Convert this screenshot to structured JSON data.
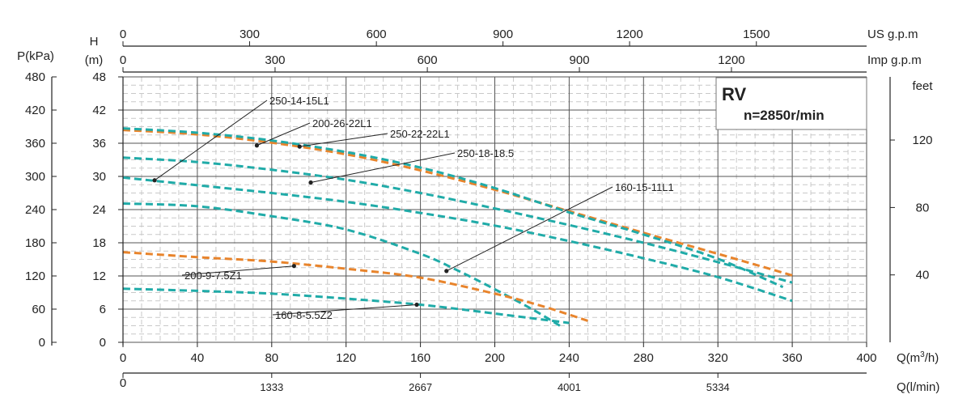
{
  "chart_data": {
    "type": "line",
    "title": "RV",
    "subtitle": "n=2850r/min",
    "x_axis": {
      "label_main": "Q(m",
      "label_sup": "3",
      "label_tail": "/h)",
      "min": 0,
      "max": 400,
      "ticks": [
        0,
        40,
        80,
        120,
        160,
        200,
        240,
        280,
        320,
        360,
        400
      ]
    },
    "x_axis_lmin": {
      "label": "Q(l/min)",
      "ticks": [
        {
          "q": 0,
          "label": "0"
        },
        {
          "q": 80,
          "label": "1333"
        },
        {
          "q": 160,
          "label": "2667"
        },
        {
          "q": 240,
          "label": "4001"
        },
        {
          "q": 320,
          "label": "5334"
        }
      ]
    },
    "x_axis_usgpm": {
      "label": "US g.p.m",
      "ticks": [
        {
          "q": 0,
          "label": "0"
        },
        {
          "q": 68.1,
          "label": "300"
        },
        {
          "q": 136.3,
          "label": "600"
        },
        {
          "q": 204.4,
          "label": "900"
        },
        {
          "q": 272.5,
          "label": "1200"
        },
        {
          "q": 340.7,
          "label": "1500"
        }
      ]
    },
    "x_axis_impgpm": {
      "label": "Imp g.p.m",
      "ticks": [
        {
          "q": 0,
          "label": "0"
        },
        {
          "q": 81.8,
          "label": "300"
        },
        {
          "q": 163.7,
          "label": "600"
        },
        {
          "q": 245.5,
          "label": "900"
        },
        {
          "q": 327.3,
          "label": "1200"
        }
      ]
    },
    "y_axis_head": {
      "label_top": "H",
      "label_unit": "(m)",
      "min": 0,
      "max": 48,
      "ticks": [
        0,
        6,
        12,
        18,
        24,
        30,
        36,
        42,
        48
      ]
    },
    "y_axis_pressure": {
      "label": "P(kPa)",
      "ticks": [
        "0",
        "60",
        "120",
        "180",
        "240",
        "300",
        "360",
        "420",
        "480"
      ]
    },
    "y_axis_feet": {
      "label": "feet",
      "ticks": [
        {
          "h": 12.19,
          "label": "40"
        },
        {
          "h": 24.38,
          "label": "80"
        },
        {
          "h": 36.58,
          "label": "120"
        }
      ]
    },
    "grid": true,
    "legend_position": "top-right",
    "series": [
      {
        "name": "250-14-15L1",
        "color": "#20aba8",
        "x": [
          0,
          40,
          80,
          120,
          160,
          200,
          240,
          280,
          320,
          360
        ],
        "y": [
          33.4,
          32.6,
          31.2,
          29.4,
          27.0,
          24.2,
          21.2,
          18.0,
          14.5,
          10.8
        ],
        "label_at": [
          17,
          29.3
        ]
      },
      {
        "name": "200-26-22L1",
        "color": "#e8842c",
        "x": [
          0,
          40,
          80,
          120,
          160,
          200,
          240,
          280,
          320,
          360
        ],
        "y": [
          38.4,
          37.6,
          36.1,
          34.0,
          31.1,
          27.6,
          23.7,
          19.8,
          16.0,
          12.1
        ],
        "label_at": [
          72,
          35.6
        ]
      },
      {
        "name": "250-22-22L1",
        "color": "#20aba8",
        "x": [
          0,
          40,
          80,
          120,
          160,
          200,
          240,
          280,
          320,
          355
        ],
        "y": [
          38.7,
          37.9,
          36.5,
          34.4,
          31.6,
          27.9,
          23.5,
          19.5,
          15.1,
          10.0
        ],
        "label_at": [
          95,
          35.4
        ]
      },
      {
        "name": "250-18-18.5",
        "color": "#20aba8",
        "x": [
          0,
          40,
          80,
          120,
          160,
          200,
          240,
          280,
          320,
          360
        ],
        "y": [
          29.8,
          28.4,
          27.0,
          25.4,
          23.4,
          21.1,
          18.3,
          15.2,
          11.8,
          7.5
        ],
        "label_at": [
          101,
          28.9
        ]
      },
      {
        "name": "160-15-11L1",
        "color": "#20aba8",
        "x": [
          0,
          40,
          80,
          120,
          160,
          180,
          200,
          220,
          235
        ],
        "y": [
          25.1,
          24.6,
          22.8,
          20.4,
          16.0,
          13.0,
          9.6,
          6.0,
          3.0
        ],
        "label_at": [
          174,
          12.9
        ]
      },
      {
        "name": "200-9-7.5Z1",
        "color": "#e8842c",
        "x": [
          0,
          40,
          80,
          120,
          160,
          200,
          225,
          250
        ],
        "y": [
          16.3,
          15.4,
          14.6,
          13.3,
          11.7,
          8.8,
          6.6,
          3.9
        ],
        "label_at": [
          92,
          13.8
        ]
      },
      {
        "name": "160-8-5.5Z2",
        "color": "#20aba8",
        "x": [
          0,
          40,
          80,
          120,
          160,
          200,
          240
        ],
        "y": [
          9.7,
          9.3,
          8.8,
          7.9,
          6.8,
          5.2,
          3.5
        ],
        "label_at": [
          158,
          6.8
        ]
      }
    ],
    "series_label_positions": [
      {
        "text": "250-14-15L1",
        "tx": 333,
        "ty": 129
      },
      {
        "text": "200-26-22L1",
        "tx": 386,
        "ty": 157
      },
      {
        "text": "250-22-22L1",
        "tx": 482,
        "ty": 170
      },
      {
        "text": "250-18-18.5",
        "tx": 565,
        "ty": 194
      },
      {
        "text": "160-15-11L1",
        "tx": 760,
        "ty": 236
      },
      {
        "text": "200-9-7.5Z1",
        "tx": 228,
        "ty": 345
      },
      {
        "text": "160-8-5.5Z2",
        "tx": 340,
        "ty": 394
      }
    ]
  }
}
